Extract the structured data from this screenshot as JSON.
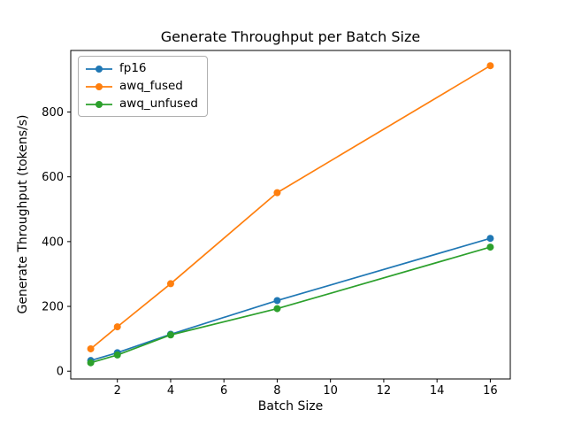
{
  "chart_data": {
    "type": "line",
    "title": "Generate Throughput per Batch Size",
    "xlabel": "Batch Size",
    "ylabel": "Generate Throughput (tokens/s)",
    "x": [
      1,
      2,
      4,
      8,
      16
    ],
    "series": [
      {
        "name": "fp16",
        "color": "#1f77b4",
        "values": [
          33,
          57,
          114,
          218,
          410
        ]
      },
      {
        "name": "awq_fused",
        "color": "#ff7f0e",
        "values": [
          69,
          137,
          270,
          551,
          943
        ]
      },
      {
        "name": "awq_unfused",
        "color": "#2ca02c",
        "values": [
          26,
          50,
          112,
          193,
          383
        ]
      }
    ],
    "xticks": [
      2,
      4,
      6,
      8,
      10,
      12,
      14,
      16
    ],
    "yticks": [
      0,
      200,
      400,
      600,
      800
    ],
    "xlim": [
      0.25,
      16.75
    ],
    "ylim": [
      -24,
      990
    ],
    "grid": false,
    "legend_position": "upper left",
    "marker": "o",
    "axis_color": "#000000",
    "background_color": "#ffffff"
  }
}
